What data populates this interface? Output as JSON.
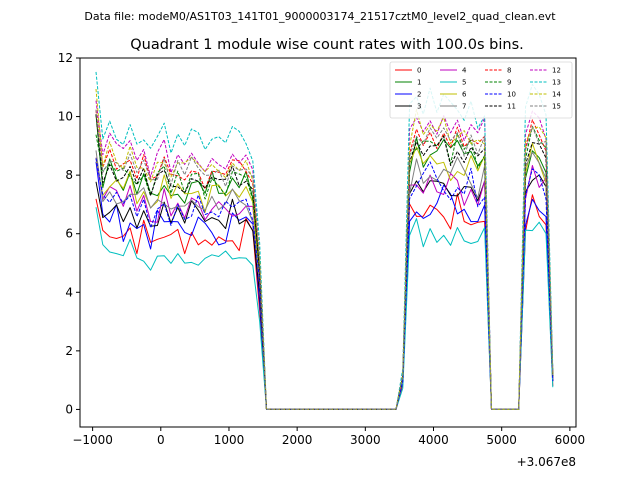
{
  "header": {
    "file_label": "Data file: modeM0/AS1T03_141T01_9000003174_21517cztM0_level2_quad_clean.evt"
  },
  "chart_data": {
    "type": "line",
    "title": "Quadrant 1 module wise count rates with 100.0s bins.",
    "xlabel": "",
    "ylabel": "",
    "x_offset_label": "+3.067e8",
    "xlim": [
      -1185,
      6090
    ],
    "ylim": [
      -0.6,
      12
    ],
    "x_ticks": [
      -1000,
      0,
      1000,
      2000,
      3000,
      4000,
      5000,
      6000
    ],
    "y_ticks": [
      0,
      2,
      4,
      6,
      8,
      10,
      12
    ],
    "grid": false,
    "legend_position": "top-right",
    "legend_columns": 4,
    "x": [
      -950,
      -850,
      -750,
      -650,
      -550,
      -450,
      -350,
      -250,
      -150,
      -50,
      50,
      150,
      250,
      350,
      450,
      550,
      650,
      750,
      850,
      950,
      1050,
      1150,
      1250,
      1350,
      1450,
      1550,
      1650,
      3450,
      3550,
      3650,
      3750,
      3850,
      3950,
      4050,
      4150,
      4250,
      4350,
      4450,
      4550,
      4650,
      4750,
      4850,
      5250,
      5350,
      5450,
      5550,
      5650,
      5750
    ],
    "profile": [
      1,
      0.84,
      0.88,
      0.85,
      0.83,
      0.86,
      0.8,
      0.84,
      0.78,
      0.82,
      0.85,
      0.79,
      0.83,
      0.8,
      0.84,
      0.82,
      0.78,
      0.83,
      0.81,
      0.8,
      0.85,
      0.82,
      0.84,
      0.78,
      0.5,
      0,
      0,
      0,
      0.12,
      0.9,
      0.97,
      0.93,
      0.96,
      0.92,
      0.95,
      0.91,
      0.94,
      0.9,
      0.92,
      0.88,
      0.92,
      0,
      0,
      0.9,
      0.97,
      0.94,
      0.9,
      0.12
    ],
    "series": [
      {
        "name": "0",
        "color": "#ff0000",
        "dash": "solid",
        "level": 7.2,
        "variation": 0.65
      },
      {
        "name": "1",
        "color": "#008000",
        "dash": "solid",
        "level": 9.3,
        "variation": 0.55
      },
      {
        "name": "2",
        "color": "#0000ff",
        "dash": "solid",
        "level": 7.6,
        "variation": 0.7
      },
      {
        "name": "3",
        "color": "#000000",
        "dash": "solid",
        "level": 8.1,
        "variation": 0.45
      },
      {
        "name": "4",
        "color": "#bf00bf",
        "dash": "solid",
        "level": 8.3,
        "variation": 0.6
      },
      {
        "name": "5",
        "color": "#00bfbf",
        "dash": "solid",
        "level": 6.4,
        "variation": 0.45
      },
      {
        "name": "6",
        "color": "#bfbf00",
        "dash": "solid",
        "level": 9.0,
        "variation": 0.5
      },
      {
        "name": "7",
        "color": "#808080",
        "dash": "solid",
        "level": 8.7,
        "variation": 0.5
      },
      {
        "name": "8",
        "color": "#ff0000",
        "dash": "dashed",
        "level": 10.0,
        "variation": 0.4
      },
      {
        "name": "9",
        "color": "#008000",
        "dash": "dashed",
        "level": 9.6,
        "variation": 0.45
      },
      {
        "name": "10",
        "color": "#0000ff",
        "dash": "dashed",
        "level": 8.4,
        "variation": 0.55
      },
      {
        "name": "11",
        "color": "#000000",
        "dash": "dashed",
        "level": 9.5,
        "variation": 0.35
      },
      {
        "name": "12",
        "color": "#bf00bf",
        "dash": "dashed",
        "level": 10.5,
        "variation": 0.35
      },
      {
        "name": "13",
        "color": "#00bfbf",
        "dash": "dashed",
        "level": 11.2,
        "variation": 0.4
      },
      {
        "name": "14",
        "color": "#bfbf00",
        "dash": "dashed",
        "level": 10.2,
        "variation": 0.4
      },
      {
        "name": "15",
        "color": "#808080",
        "dash": "dashed",
        "level": 9.9,
        "variation": 0.4
      }
    ]
  }
}
